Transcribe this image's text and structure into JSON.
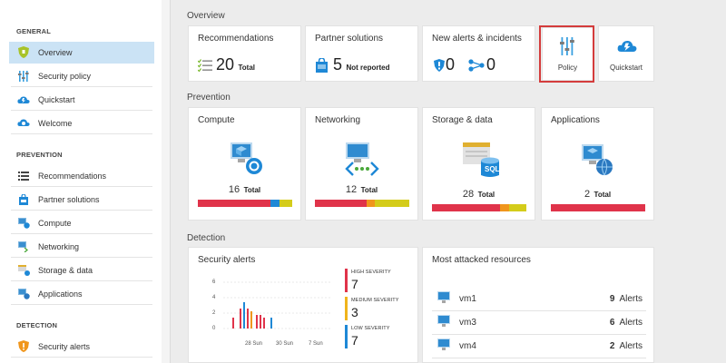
{
  "sidebar": {
    "general_header": "GENERAL",
    "general_items": [
      {
        "label": "Overview",
        "icon": "shield-icon"
      },
      {
        "label": "Security policy",
        "icon": "policy-sliders-icon"
      },
      {
        "label": "Quickstart",
        "icon": "quickstart-cloud-icon"
      },
      {
        "label": "Welcome",
        "icon": "welcome-cloud-icon"
      }
    ],
    "prevention_header": "PREVENTION",
    "prevention_items": [
      {
        "label": "Recommendations",
        "icon": "list-icon"
      },
      {
        "label": "Partner solutions",
        "icon": "partner-bag-icon"
      },
      {
        "label": "Compute",
        "icon": "compute-icon"
      },
      {
        "label": "Networking",
        "icon": "networking-icon"
      },
      {
        "label": "Storage & data",
        "icon": "storage-icon"
      },
      {
        "label": "Applications",
        "icon": "applications-icon"
      }
    ],
    "detection_header": "DETECTION",
    "detection_items": [
      {
        "label": "Security alerts",
        "icon": "alert-shield-icon"
      }
    ]
  },
  "overview": {
    "title": "Overview",
    "recommendations": {
      "title": "Recommendations",
      "count": "20",
      "suffix": "Total"
    },
    "partner": {
      "title": "Partner solutions",
      "count": "5",
      "suffix": "Not reported"
    },
    "alerts": {
      "title": "New alerts & incidents",
      "alerts_count": "0",
      "incidents_count": "0"
    },
    "policy_label": "Policy",
    "quickstart_label": "Quickstart"
  },
  "prevention": {
    "title": "Prevention",
    "tiles": [
      {
        "title": "Compute",
        "count": "16",
        "suffix": "Total",
        "bar": [
          {
            "color": "#e0334a",
            "pct": 77
          },
          {
            "color": "#1e88d6",
            "pct": 10
          },
          {
            "color": "#d4cc1a",
            "pct": 13
          }
        ]
      },
      {
        "title": "Networking",
        "count": "12",
        "suffix": "Total",
        "bar": [
          {
            "color": "#e0334a",
            "pct": 55
          },
          {
            "color": "#f0961c",
            "pct": 8
          },
          {
            "color": "#d4cc1a",
            "pct": 37
          }
        ]
      },
      {
        "title": "Storage & data",
        "count": "28",
        "suffix": "Total",
        "bar": [
          {
            "color": "#e0334a",
            "pct": 72
          },
          {
            "color": "#f0961c",
            "pct": 10
          },
          {
            "color": "#d4cc1a",
            "pct": 18
          }
        ]
      },
      {
        "title": "Applications",
        "count": "2",
        "suffix": "Total",
        "bar": [
          {
            "color": "#e0334a",
            "pct": 100
          }
        ]
      }
    ]
  },
  "detection": {
    "title": "Detection",
    "security_alerts": {
      "title": "Security alerts",
      "y_ticks": [
        "6",
        "4",
        "2",
        "0"
      ],
      "x_ticks": [
        "28 Sun",
        "30 Sun",
        "7 Sun"
      ],
      "high_label": "HIGH SEVERITY",
      "high_count": "7",
      "medium_label": "MEDIUM SEVERITY",
      "medium_count": "3",
      "low_label": "LOW SEVERITY",
      "low_count": "7"
    },
    "most_attacked": {
      "title": "Most attacked resources",
      "rows": [
        {
          "name": "vm1",
          "count": "9",
          "unit": "Alerts"
        },
        {
          "name": "vm3",
          "count": "6",
          "unit": "Alerts"
        },
        {
          "name": "vm4",
          "count": "2",
          "unit": "Alerts"
        }
      ]
    }
  },
  "colors": {
    "high": "#e0334a",
    "medium": "#f0b41c",
    "low": "#1e88d6",
    "accent": "#cbe3f5"
  }
}
